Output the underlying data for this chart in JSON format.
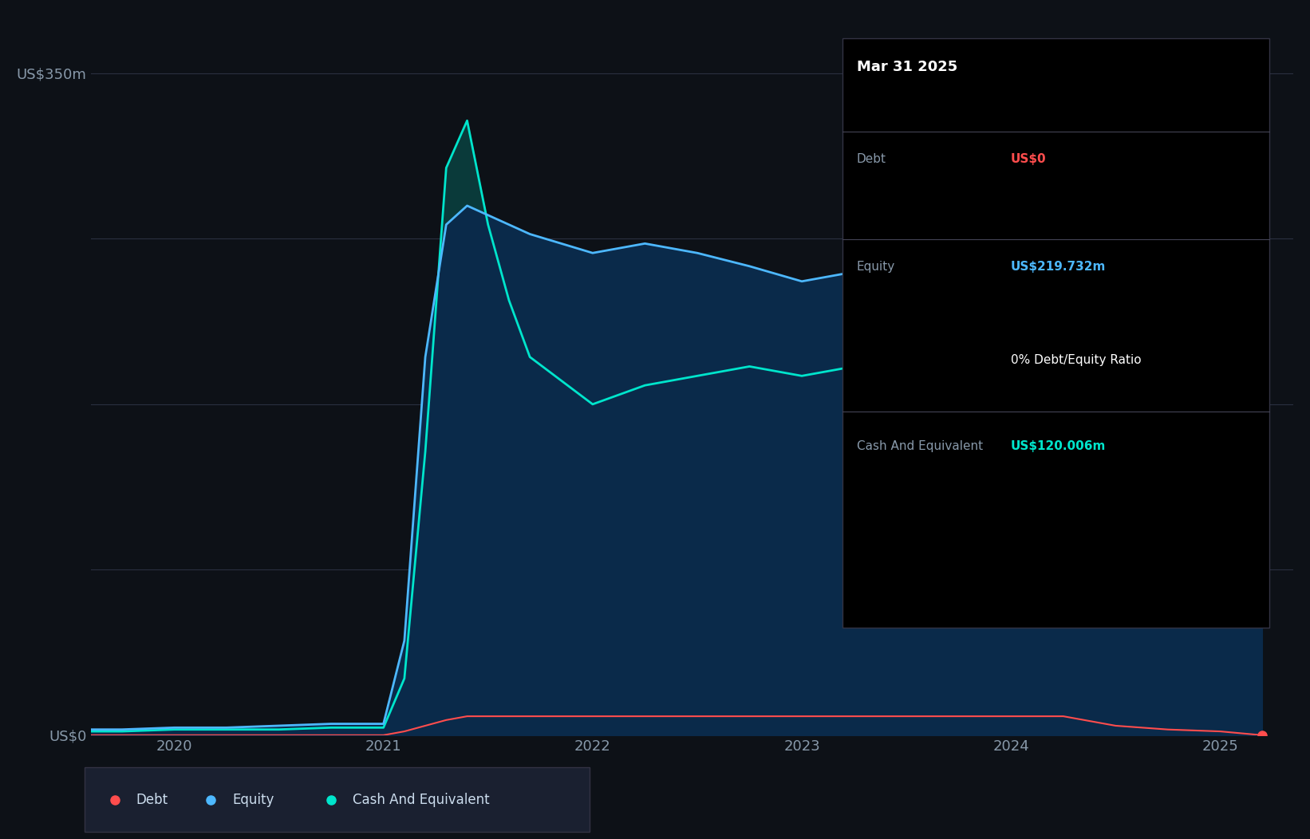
{
  "bg_color": "#0d1117",
  "plot_bg_color": "#0d1117",
  "grid_color": "#2a3040",
  "ylabel_top": "US$350m",
  "ylabel_bottom": "US$0",
  "x_ticks": [
    2020,
    2021,
    2022,
    2023,
    2024,
    2025
  ],
  "tooltip": {
    "date": "Mar 31 2025",
    "debt_label": "Debt",
    "debt_value": "US$0",
    "equity_label": "Equity",
    "equity_value": "US$219.732m",
    "ratio_label": "0% Debt/Equity Ratio",
    "cash_label": "Cash And Equivalent",
    "cash_value": "US$120.006m"
  },
  "legend": [
    {
      "label": "Debt",
      "color": "#ff4d4d"
    },
    {
      "label": "Equity",
      "color": "#4db8ff"
    },
    {
      "label": "Cash And Equivalent",
      "color": "#00e5cc"
    }
  ],
  "debt_color": "#ff4d4d",
  "equity_color": "#4db8ff",
  "cash_color": "#00e5cc",
  "equity_fill_color": "#0a2a4a",
  "cash_fill_color": "#0a3a3a",
  "dates": [
    2019.0,
    2019.25,
    2019.5,
    2019.75,
    2020.0,
    2020.25,
    2020.5,
    2020.75,
    2021.0,
    2021.1,
    2021.2,
    2021.3,
    2021.4,
    2021.5,
    2021.6,
    2021.7,
    2022.0,
    2022.25,
    2022.5,
    2022.75,
    2023.0,
    2023.25,
    2023.5,
    2023.75,
    2024.0,
    2024.1,
    2024.25,
    2024.5,
    2024.75,
    2025.0,
    2025.2
  ],
  "equity": [
    2,
    2,
    3,
    3,
    4,
    4,
    5,
    6,
    6,
    50,
    200,
    270,
    280,
    275,
    270,
    265,
    255,
    260,
    255,
    248,
    240,
    245,
    248,
    250,
    245,
    240,
    238,
    235,
    232,
    230,
    219.732
  ],
  "cash": [
    2,
    2,
    2,
    2,
    3,
    3,
    3,
    4,
    4,
    30,
    150,
    300,
    325,
    270,
    230,
    200,
    175,
    185,
    190,
    195,
    190,
    195,
    190,
    185,
    175,
    170,
    165,
    155,
    140,
    130,
    120.006
  ],
  "debt": [
    0,
    0,
    0,
    0,
    0,
    0,
    0,
    0,
    0,
    2,
    5,
    8,
    10,
    10,
    10,
    10,
    10,
    10,
    10,
    10,
    10,
    10,
    10,
    10,
    10,
    10,
    10,
    5,
    3,
    2,
    0
  ],
  "ylim": [
    0,
    380
  ],
  "xlim": [
    2019.6,
    2025.35
  ]
}
